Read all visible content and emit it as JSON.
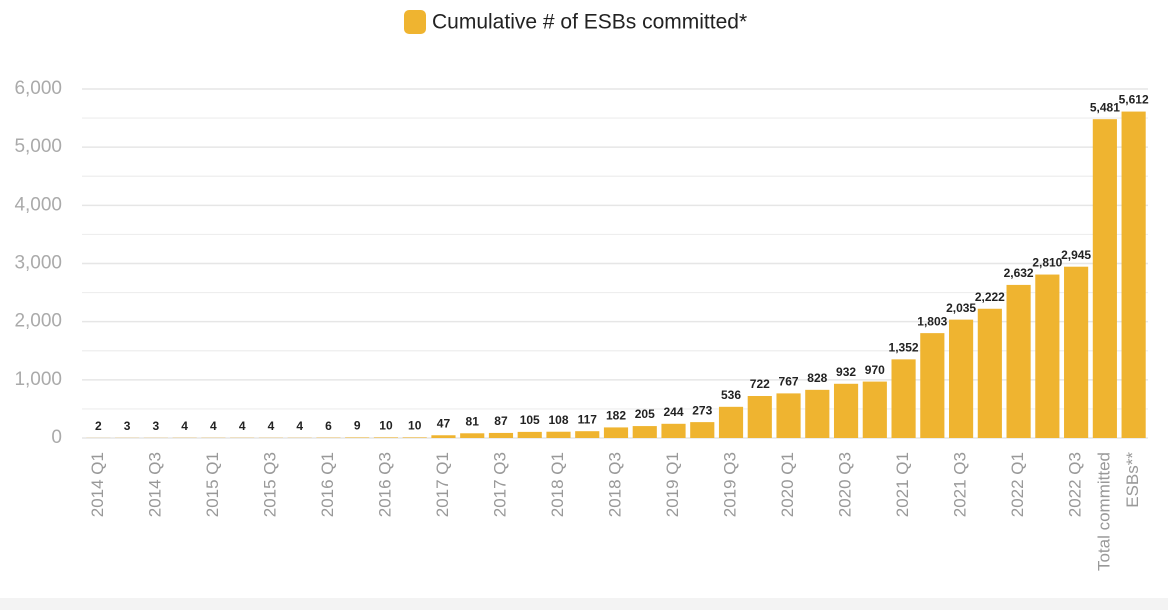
{
  "chart_data": {
    "type": "bar",
    "legend": "Cumulative # of ESBs committed*",
    "color": "#efb430",
    "categories": [
      "2014 Q1",
      null,
      "2014 Q3",
      null,
      "2015 Q1",
      null,
      "2015 Q3",
      null,
      "2016 Q1",
      null,
      "2016 Q3",
      null,
      "2017 Q1",
      null,
      "2017 Q3",
      null,
      "2018 Q1",
      null,
      "2018 Q3",
      null,
      "2019 Q1",
      null,
      "2019 Q3",
      null,
      "2020 Q1",
      null,
      "2020 Q3",
      null,
      "2021 Q1",
      null,
      "2021 Q3",
      null,
      "2022 Q1",
      null,
      "2022 Q3",
      "Total committed",
      "ESBs**"
    ],
    "values": [
      2,
      3,
      3,
      4,
      4,
      4,
      4,
      4,
      6,
      9,
      10,
      10,
      47,
      81,
      87,
      105,
      108,
      117,
      182,
      205,
      244,
      273,
      536,
      722,
      767,
      828,
      932,
      970,
      1352,
      1803,
      2035,
      2222,
      2632,
      2810,
      2945,
      5481,
      5612
    ],
    "value_labels": [
      "2",
      "3",
      "3",
      "4",
      "4",
      "4",
      "4",
      "4",
      "6",
      "9",
      "10",
      "10",
      "47",
      "81",
      "87",
      "105",
      "108",
      "117",
      "182",
      "205",
      "244",
      "273",
      "536",
      "722",
      "767",
      "828",
      "932",
      "970",
      "1,352",
      "1,803",
      "2,035",
      "2,222",
      "2,632",
      "2,810",
      "2,945",
      "5,481",
      "5,612"
    ],
    "ylim": [
      0,
      6000
    ],
    "yticks": [
      0,
      {
        "value": 1000,
        "label": "1,000"
      },
      {
        "value": 2000,
        "label": "2,000"
      },
      {
        "value": 3000,
        "label": "3,000"
      },
      {
        "value": 4000,
        "label": "4,000"
      },
      {
        "value": 5000,
        "label": "5,000"
      },
      {
        "value": 6000,
        "label": "6,000"
      }
    ],
    "grid": true
  }
}
